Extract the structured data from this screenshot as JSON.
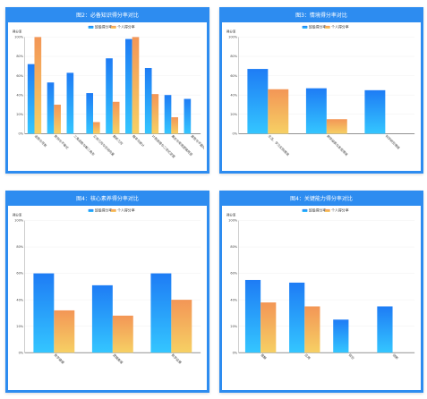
{
  "colors": {
    "border": "#2d8cf0",
    "header_bg": "#2d8cf0",
    "series_blue_top": "#1e7cf5",
    "series_blue_bottom": "#34c6ff",
    "series_orange_top": "#f39656",
    "series_orange_bottom": "#f6d064"
  },
  "chart_data": [
    {
      "type": "bar",
      "title": "图2：必备知识得分率对比",
      "ylabel": "得分率",
      "ylim": [
        0,
        100
      ],
      "yticks": [
        "0%",
        "20%",
        "40%",
        "60%",
        "80%",
        "100%"
      ],
      "categories": [
        "函数与导数",
        "数列与不等式",
        "三角函数与解三角形",
        "立体几何与空间向量",
        "解析几何",
        "概率与统计",
        "计数原理与二项式定理",
        "集合与常用逻辑用语",
        "复数与平面向量"
      ],
      "series": [
        {
          "name": "班级得分率",
          "values": [
            72,
            53,
            63,
            42,
            78,
            98,
            68,
            40,
            36
          ]
        },
        {
          "name": "个人得分率",
          "values": [
            100,
            30,
            0,
            12,
            33,
            100,
            41,
            17,
            0
          ]
        }
      ],
      "legend": "top-center"
    },
    {
      "type": "bar",
      "title": "图3：情境得分率对比",
      "ylabel": "得分率",
      "ylim": [
        0,
        100
      ],
      "yticks": [
        "0%",
        "20%",
        "40%",
        "60%",
        "80%",
        "100%"
      ],
      "categories": [
        "生活、学习实践情境",
        "数学探索与发现情境",
        "科学研究情境"
      ],
      "series": [
        {
          "name": "班级得分率",
          "values": [
            67,
            47,
            45
          ]
        },
        {
          "name": "个人得分率",
          "values": [
            46,
            15,
            0
          ]
        }
      ],
      "legend": "top-center"
    },
    {
      "type": "bar",
      "title": "图4：核心素养得分率对比",
      "ylabel": "得分率",
      "ylim": [
        0,
        100
      ],
      "yticks": [
        "0%",
        "20%",
        "40%",
        "60%",
        "80%",
        "100%"
      ],
      "categories": [
        "数学建模",
        "逻辑推理",
        "数学运算"
      ],
      "series": [
        {
          "name": "班级得分率",
          "values": [
            60,
            51,
            60
          ]
        },
        {
          "name": "个人得分率",
          "values": [
            32,
            28,
            40
          ]
        }
      ],
      "legend": "top-center"
    },
    {
      "type": "bar",
      "title": "图4：关键能力得分率对比",
      "ylabel": "得分率",
      "ylim": [
        0,
        100
      ],
      "yticks": [
        "0%",
        "20%",
        "40%",
        "60%",
        "80%",
        "100%"
      ],
      "categories": [
        "理解",
        "应用",
        "综合",
        "创新"
      ],
      "series": [
        {
          "name": "班级得分率",
          "values": [
            55,
            53,
            25,
            35
          ]
        },
        {
          "name": "个人得分率",
          "values": [
            38,
            35,
            0,
            0
          ]
        }
      ],
      "legend": "top-center"
    }
  ]
}
